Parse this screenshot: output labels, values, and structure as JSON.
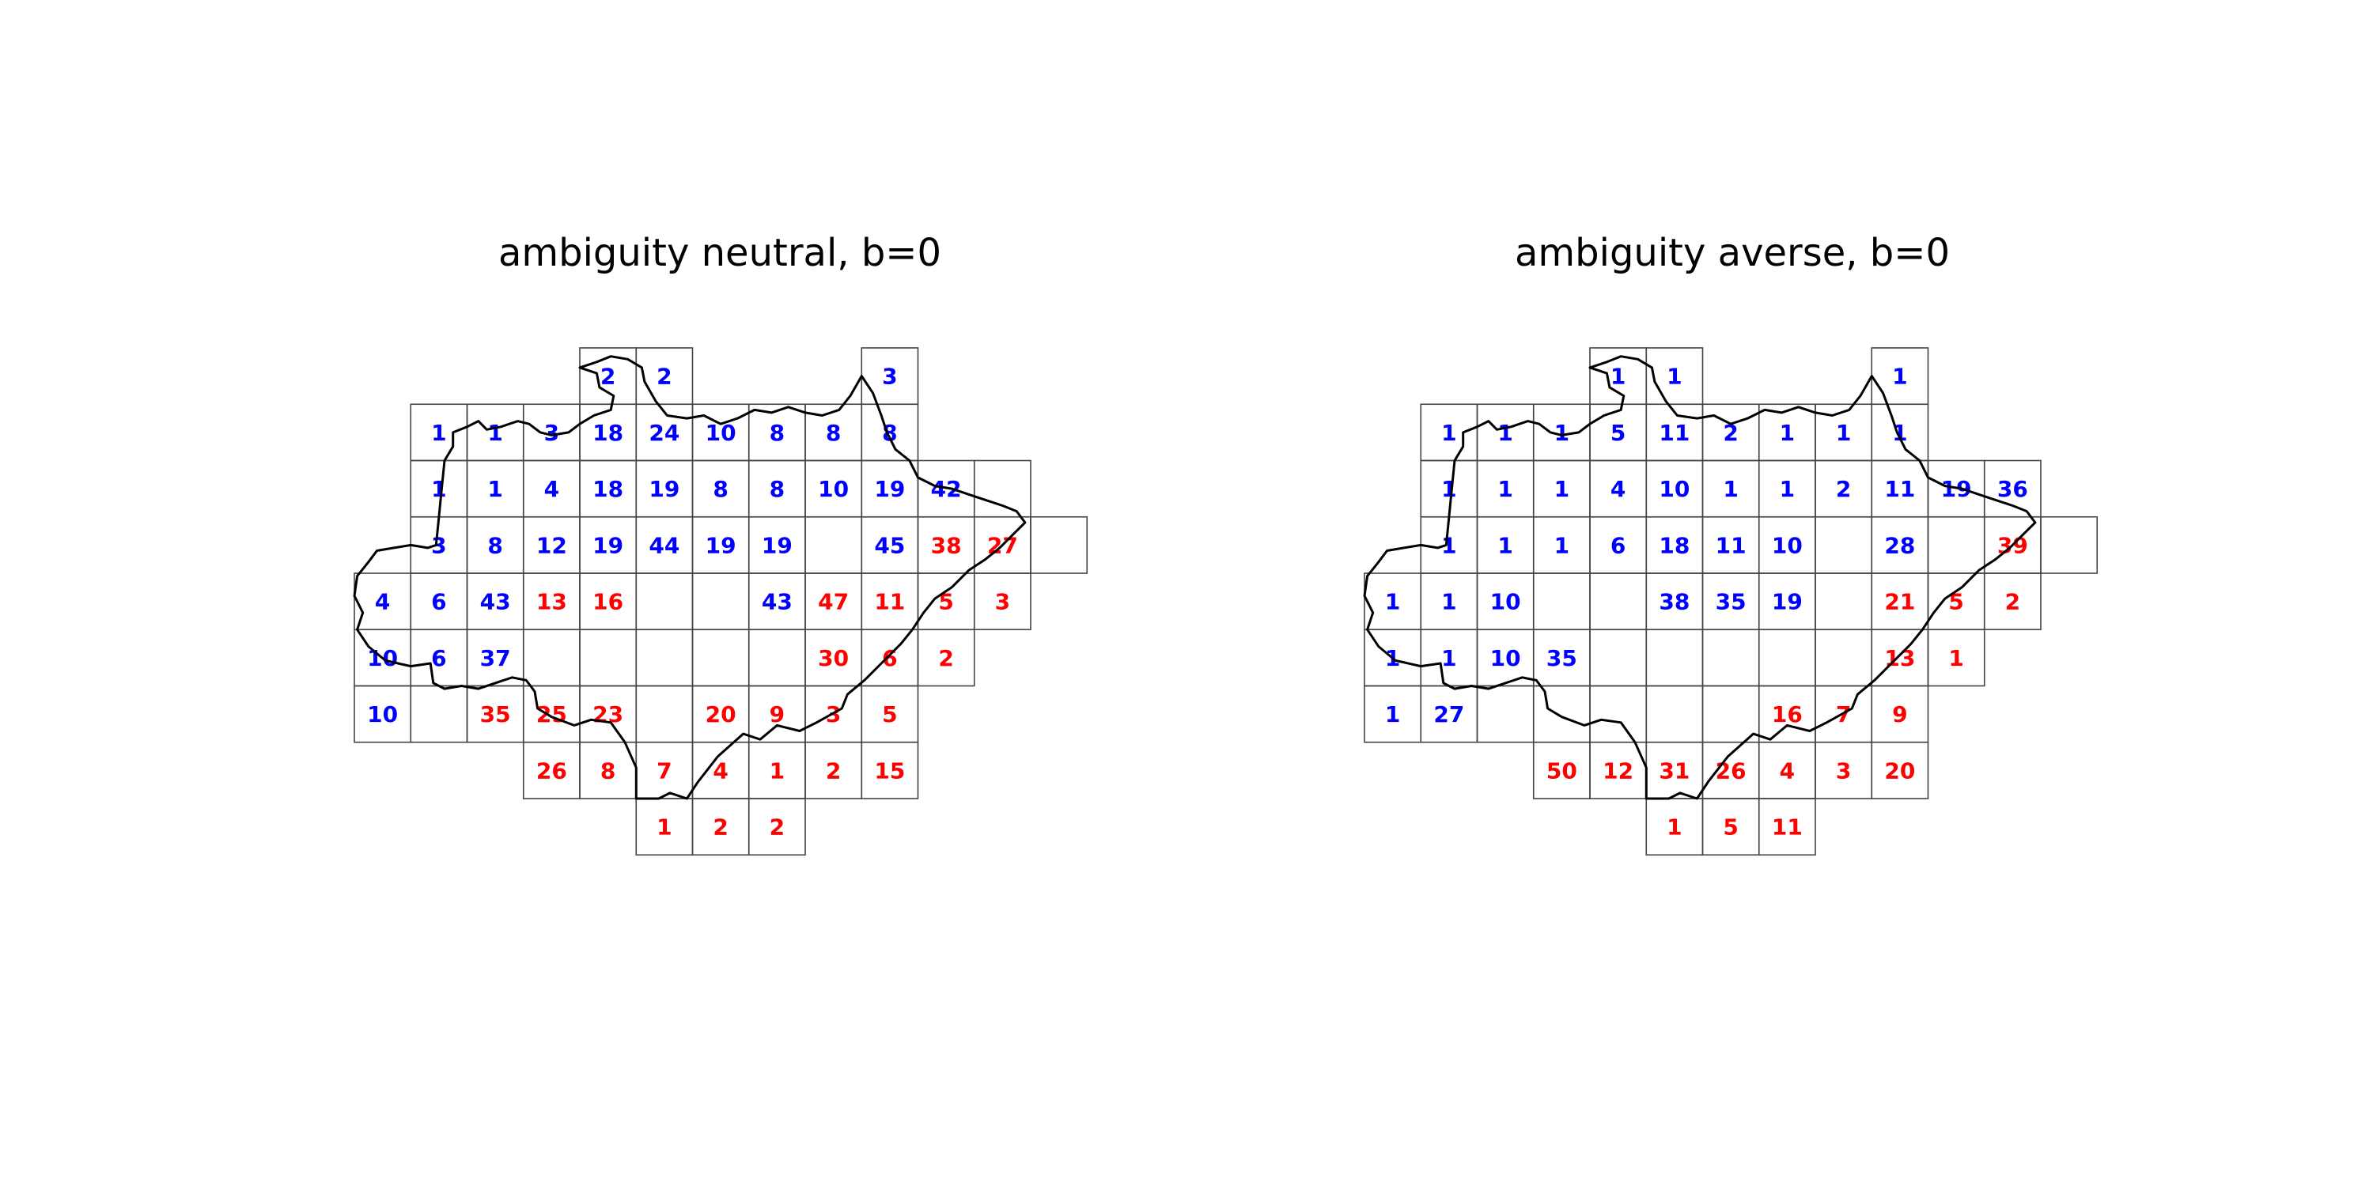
{
  "colors": {
    "background": "#ffffff",
    "grid_line": "#444444",
    "boundary": "#000000",
    "positive_value": "#0000ff",
    "negative_value": "#ff0000"
  },
  "legend_semantics": "none printed; value color encodes category (blue vs red)",
  "panels": [
    {
      "title": "ambiguity neutral, b=0",
      "cells": [
        {
          "row": 0,
          "col": 4,
          "value": "2",
          "color": "blue"
        },
        {
          "row": 0,
          "col": 5,
          "value": "2",
          "color": "blue"
        },
        {
          "row": 0,
          "col": 9,
          "value": "3",
          "color": "blue"
        },
        {
          "row": 1,
          "col": 1,
          "value": "1",
          "color": "blue"
        },
        {
          "row": 1,
          "col": 2,
          "value": "1",
          "color": "blue"
        },
        {
          "row": 1,
          "col": 3,
          "value": "3",
          "color": "blue"
        },
        {
          "row": 1,
          "col": 4,
          "value": "18",
          "color": "blue"
        },
        {
          "row": 1,
          "col": 5,
          "value": "24",
          "color": "blue"
        },
        {
          "row": 1,
          "col": 6,
          "value": "10",
          "color": "blue"
        },
        {
          "row": 1,
          "col": 7,
          "value": "8",
          "color": "blue"
        },
        {
          "row": 1,
          "col": 8,
          "value": "8",
          "color": "blue"
        },
        {
          "row": 1,
          "col": 9,
          "value": "8",
          "color": "blue"
        },
        {
          "row": 2,
          "col": 1,
          "value": "1",
          "color": "blue"
        },
        {
          "row": 2,
          "col": 2,
          "value": "1",
          "color": "blue"
        },
        {
          "row": 2,
          "col": 3,
          "value": "4",
          "color": "blue"
        },
        {
          "row": 2,
          "col": 4,
          "value": "18",
          "color": "blue"
        },
        {
          "row": 2,
          "col": 5,
          "value": "19",
          "color": "blue"
        },
        {
          "row": 2,
          "col": 6,
          "value": "8",
          "color": "blue"
        },
        {
          "row": 2,
          "col": 7,
          "value": "8",
          "color": "blue"
        },
        {
          "row": 2,
          "col": 8,
          "value": "10",
          "color": "blue"
        },
        {
          "row": 2,
          "col": 9,
          "value": "19",
          "color": "blue"
        },
        {
          "row": 2,
          "col": 10,
          "value": "42",
          "color": "blue"
        },
        {
          "row": 2,
          "col": 11,
          "value": "",
          "color": "blue"
        },
        {
          "row": 3,
          "col": 1,
          "value": "3",
          "color": "blue"
        },
        {
          "row": 3,
          "col": 2,
          "value": "8",
          "color": "blue"
        },
        {
          "row": 3,
          "col": 3,
          "value": "12",
          "color": "blue"
        },
        {
          "row": 3,
          "col": 4,
          "value": "19",
          "color": "blue"
        },
        {
          "row": 3,
          "col": 5,
          "value": "44",
          "color": "blue"
        },
        {
          "row": 3,
          "col": 6,
          "value": "19",
          "color": "blue"
        },
        {
          "row": 3,
          "col": 7,
          "value": "19",
          "color": "blue"
        },
        {
          "row": 3,
          "col": 8,
          "value": "",
          "color": "blue"
        },
        {
          "row": 3,
          "col": 9,
          "value": "45",
          "color": "blue"
        },
        {
          "row": 3,
          "col": 10,
          "value": "38",
          "color": "red"
        },
        {
          "row": 3,
          "col": 11,
          "value": "27",
          "color": "red"
        },
        {
          "row": 3,
          "col": 12,
          "value": "",
          "color": "red"
        },
        {
          "row": 4,
          "col": 0,
          "value": "4",
          "color": "blue"
        },
        {
          "row": 4,
          "col": 1,
          "value": "6",
          "color": "blue"
        },
        {
          "row": 4,
          "col": 2,
          "value": "43",
          "color": "blue"
        },
        {
          "row": 4,
          "col": 3,
          "value": "13",
          "color": "red"
        },
        {
          "row": 4,
          "col": 4,
          "value": "16",
          "color": "red"
        },
        {
          "row": 4,
          "col": 5,
          "value": "",
          "color": "red"
        },
        {
          "row": 4,
          "col": 6,
          "value": "",
          "color": "red"
        },
        {
          "row": 4,
          "col": 7,
          "value": "43",
          "color": "blue"
        },
        {
          "row": 4,
          "col": 8,
          "value": "47",
          "color": "red"
        },
        {
          "row": 4,
          "col": 9,
          "value": "11",
          "color": "red"
        },
        {
          "row": 4,
          "col": 10,
          "value": "5",
          "color": "red"
        },
        {
          "row": 4,
          "col": 11,
          "value": "3",
          "color": "red"
        },
        {
          "row": 5,
          "col": 0,
          "value": "10",
          "color": "blue"
        },
        {
          "row": 5,
          "col": 1,
          "value": "6",
          "color": "blue"
        },
        {
          "row": 5,
          "col": 2,
          "value": "37",
          "color": "blue"
        },
        {
          "row": 5,
          "col": 3,
          "value": "",
          "color": "blue"
        },
        {
          "row": 5,
          "col": 4,
          "value": "",
          "color": "blue"
        },
        {
          "row": 5,
          "col": 5,
          "value": "",
          "color": "blue"
        },
        {
          "row": 5,
          "col": 6,
          "value": "",
          "color": "blue"
        },
        {
          "row": 5,
          "col": 7,
          "value": "",
          "color": "blue"
        },
        {
          "row": 5,
          "col": 8,
          "value": "30",
          "color": "red"
        },
        {
          "row": 5,
          "col": 9,
          "value": "6",
          "color": "red"
        },
        {
          "row": 5,
          "col": 10,
          "value": "2",
          "color": "red"
        },
        {
          "row": 6,
          "col": 0,
          "value": "10",
          "color": "blue"
        },
        {
          "row": 6,
          "col": 1,
          "value": "",
          "color": "blue"
        },
        {
          "row": 6,
          "col": 2,
          "value": "35",
          "color": "red"
        },
        {
          "row": 6,
          "col": 3,
          "value": "25",
          "color": "red"
        },
        {
          "row": 6,
          "col": 4,
          "value": "23",
          "color": "red"
        },
        {
          "row": 6,
          "col": 5,
          "value": "",
          "color": "red"
        },
        {
          "row": 6,
          "col": 6,
          "value": "20",
          "color": "red"
        },
        {
          "row": 6,
          "col": 7,
          "value": "9",
          "color": "red"
        },
        {
          "row": 6,
          "col": 8,
          "value": "3",
          "color": "red"
        },
        {
          "row": 6,
          "col": 9,
          "value": "5",
          "color": "red"
        },
        {
          "row": 7,
          "col": 3,
          "value": "26",
          "color": "red"
        },
        {
          "row": 7,
          "col": 4,
          "value": "8",
          "color": "red"
        },
        {
          "row": 7,
          "col": 5,
          "value": "7",
          "color": "red"
        },
        {
          "row": 7,
          "col": 6,
          "value": "4",
          "color": "red"
        },
        {
          "row": 7,
          "col": 7,
          "value": "1",
          "color": "red"
        },
        {
          "row": 7,
          "col": 8,
          "value": "2",
          "color": "red"
        },
        {
          "row": 7,
          "col": 9,
          "value": "15",
          "color": "red"
        },
        {
          "row": 8,
          "col": 5,
          "value": "1",
          "color": "red"
        },
        {
          "row": 8,
          "col": 6,
          "value": "2",
          "color": "red"
        },
        {
          "row": 8,
          "col": 7,
          "value": "2",
          "color": "red"
        }
      ]
    },
    {
      "title": "ambiguity averse, b=0",
      "cells": [
        {
          "row": 0,
          "col": 4,
          "value": "1",
          "color": "blue"
        },
        {
          "row": 0,
          "col": 5,
          "value": "1",
          "color": "blue"
        },
        {
          "row": 0,
          "col": 9,
          "value": "1",
          "color": "blue"
        },
        {
          "row": 1,
          "col": 1,
          "value": "1",
          "color": "blue"
        },
        {
          "row": 1,
          "col": 2,
          "value": "1",
          "color": "blue"
        },
        {
          "row": 1,
          "col": 3,
          "value": "1",
          "color": "blue"
        },
        {
          "row": 1,
          "col": 4,
          "value": "5",
          "color": "blue"
        },
        {
          "row": 1,
          "col": 5,
          "value": "11",
          "color": "blue"
        },
        {
          "row": 1,
          "col": 6,
          "value": "2",
          "color": "blue"
        },
        {
          "row": 1,
          "col": 7,
          "value": "1",
          "color": "blue"
        },
        {
          "row": 1,
          "col": 8,
          "value": "1",
          "color": "blue"
        },
        {
          "row": 1,
          "col": 9,
          "value": "1",
          "color": "blue"
        },
        {
          "row": 2,
          "col": 1,
          "value": "1",
          "color": "blue"
        },
        {
          "row": 2,
          "col": 2,
          "value": "1",
          "color": "blue"
        },
        {
          "row": 2,
          "col": 3,
          "value": "1",
          "color": "blue"
        },
        {
          "row": 2,
          "col": 4,
          "value": "4",
          "color": "blue"
        },
        {
          "row": 2,
          "col": 5,
          "value": "10",
          "color": "blue"
        },
        {
          "row": 2,
          "col": 6,
          "value": "1",
          "color": "blue"
        },
        {
          "row": 2,
          "col": 7,
          "value": "1",
          "color": "blue"
        },
        {
          "row": 2,
          "col": 8,
          "value": "2",
          "color": "blue"
        },
        {
          "row": 2,
          "col": 9,
          "value": "11",
          "color": "blue"
        },
        {
          "row": 2,
          "col": 10,
          "value": "19",
          "color": "blue"
        },
        {
          "row": 2,
          "col": 11,
          "value": "36",
          "color": "blue"
        },
        {
          "row": 3,
          "col": 1,
          "value": "1",
          "color": "blue"
        },
        {
          "row": 3,
          "col": 2,
          "value": "1",
          "color": "blue"
        },
        {
          "row": 3,
          "col": 3,
          "value": "1",
          "color": "blue"
        },
        {
          "row": 3,
          "col": 4,
          "value": "6",
          "color": "blue"
        },
        {
          "row": 3,
          "col": 5,
          "value": "18",
          "color": "blue"
        },
        {
          "row": 3,
          "col": 6,
          "value": "11",
          "color": "blue"
        },
        {
          "row": 3,
          "col": 7,
          "value": "10",
          "color": "blue"
        },
        {
          "row": 3,
          "col": 8,
          "value": "",
          "color": "blue"
        },
        {
          "row": 3,
          "col": 9,
          "value": "28",
          "color": "blue"
        },
        {
          "row": 3,
          "col": 10,
          "value": "",
          "color": "blue"
        },
        {
          "row": 3,
          "col": 11,
          "value": "39",
          "color": "red"
        },
        {
          "row": 3,
          "col": 12,
          "value": "",
          "color": "red"
        },
        {
          "row": 4,
          "col": 0,
          "value": "1",
          "color": "blue"
        },
        {
          "row": 4,
          "col": 1,
          "value": "1",
          "color": "blue"
        },
        {
          "row": 4,
          "col": 2,
          "value": "10",
          "color": "blue"
        },
        {
          "row": 4,
          "col": 3,
          "value": "",
          "color": "blue"
        },
        {
          "row": 4,
          "col": 4,
          "value": "",
          "color": "blue"
        },
        {
          "row": 4,
          "col": 5,
          "value": "38",
          "color": "blue"
        },
        {
          "row": 4,
          "col": 6,
          "value": "35",
          "color": "blue"
        },
        {
          "row": 4,
          "col": 7,
          "value": "19",
          "color": "blue"
        },
        {
          "row": 4,
          "col": 8,
          "value": "",
          "color": "blue"
        },
        {
          "row": 4,
          "col": 9,
          "value": "21",
          "color": "red"
        },
        {
          "row": 4,
          "col": 10,
          "value": "5",
          "color": "red"
        },
        {
          "row": 4,
          "col": 11,
          "value": "2",
          "color": "red"
        },
        {
          "row": 5,
          "col": 0,
          "value": "1",
          "color": "blue"
        },
        {
          "row": 5,
          "col": 1,
          "value": "1",
          "color": "blue"
        },
        {
          "row": 5,
          "col": 2,
          "value": "10",
          "color": "blue"
        },
        {
          "row": 5,
          "col": 3,
          "value": "35",
          "color": "blue"
        },
        {
          "row": 5,
          "col": 4,
          "value": "",
          "color": "blue"
        },
        {
          "row": 5,
          "col": 5,
          "value": "",
          "color": "blue"
        },
        {
          "row": 5,
          "col": 6,
          "value": "",
          "color": "blue"
        },
        {
          "row": 5,
          "col": 7,
          "value": "",
          "color": "blue"
        },
        {
          "row": 5,
          "col": 8,
          "value": "",
          "color": "blue"
        },
        {
          "row": 5,
          "col": 9,
          "value": "13",
          "color": "red"
        },
        {
          "row": 5,
          "col": 10,
          "value": "1",
          "color": "red"
        },
        {
          "row": 6,
          "col": 0,
          "value": "1",
          "color": "blue"
        },
        {
          "row": 6,
          "col": 1,
          "value": "27",
          "color": "blue"
        },
        {
          "row": 6,
          "col": 2,
          "value": "",
          "color": "blue"
        },
        {
          "row": 6,
          "col": 3,
          "value": "",
          "color": "blue"
        },
        {
          "row": 6,
          "col": 4,
          "value": "",
          "color": "blue"
        },
        {
          "row": 6,
          "col": 5,
          "value": "",
          "color": "blue"
        },
        {
          "row": 6,
          "col": 6,
          "value": "",
          "color": "blue"
        },
        {
          "row": 6,
          "col": 7,
          "value": "16",
          "color": "red"
        },
        {
          "row": 6,
          "col": 8,
          "value": "7",
          "color": "red"
        },
        {
          "row": 6,
          "col": 9,
          "value": "9",
          "color": "red"
        },
        {
          "row": 7,
          "col": 3,
          "value": "50",
          "color": "red"
        },
        {
          "row": 7,
          "col": 4,
          "value": "12",
          "color": "red"
        },
        {
          "row": 7,
          "col": 5,
          "value": "31",
          "color": "red"
        },
        {
          "row": 7,
          "col": 6,
          "value": "26",
          "color": "red"
        },
        {
          "row": 7,
          "col": 7,
          "value": "4",
          "color": "red"
        },
        {
          "row": 7,
          "col": 8,
          "value": "3",
          "color": "red"
        },
        {
          "row": 7,
          "col": 9,
          "value": "20",
          "color": "red"
        },
        {
          "row": 8,
          "col": 5,
          "value": "1",
          "color": "red"
        },
        {
          "row": 8,
          "col": 6,
          "value": "5",
          "color": "red"
        },
        {
          "row": 8,
          "col": 7,
          "value": "11",
          "color": "red"
        }
      ]
    }
  ]
}
